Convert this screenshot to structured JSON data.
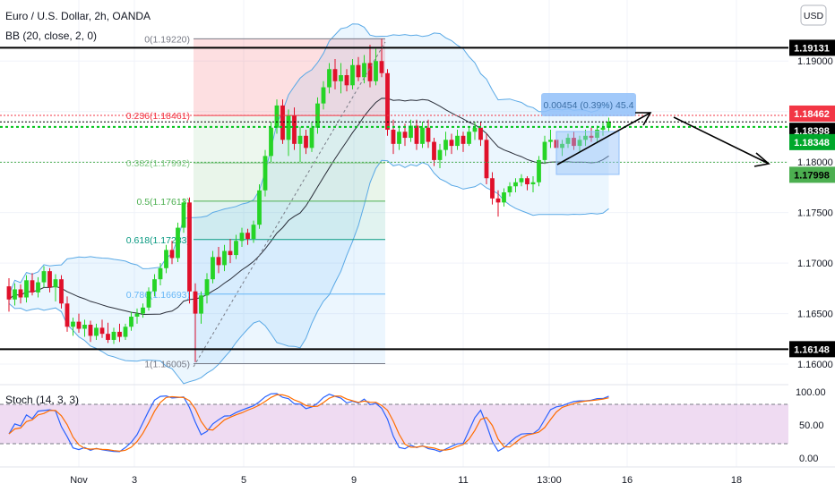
{
  "header": {
    "title": "Euro / U.S. Dollar, 2h, OANDA",
    "indicator": "BB (20, close, 2, 0)",
    "currency": "USD"
  },
  "stoch": {
    "label": "Stoch (14, 3, 3)",
    "ticks": [
      "100.00",
      "50.00",
      "0.00"
    ]
  },
  "x_axis": {
    "ticks": [
      "Nov",
      "3",
      "5",
      "9",
      "11",
      "13:00",
      "16",
      "18"
    ]
  },
  "price_axis": {
    "ticks": [
      "1.19000",
      "1.18500",
      "1.18000",
      "1.17500",
      "1.17000",
      "1.16500",
      "1.16000"
    ],
    "badges": [
      {
        "label": "1.19131",
        "color": "#000000",
        "text_color": "#ffffff"
      },
      {
        "label": "1.18462",
        "color": "#f23645",
        "text_color": "#ffffff"
      },
      {
        "label": "1.18398",
        "color": "#000000",
        "text_color": "#ffffff"
      },
      {
        "label": "1.18348",
        "color": "#00a82b",
        "text_color": "#ffffff"
      },
      {
        "label": "1.17998",
        "color": "#4caf50",
        "text_color": "#000000"
      },
      {
        "label": "1.16148",
        "color": "#000000",
        "text_color": "#ffffff"
      }
    ]
  },
  "fib_levels": [
    {
      "label": "0(1.19220)",
      "value": 1.1922,
      "color": "#787b86"
    },
    {
      "label": "0.236(1.18461)",
      "value": 1.18461,
      "color": "#f23645"
    },
    {
      "label": "0.382(1.17992)",
      "value": 1.17992,
      "color": "#81c784"
    },
    {
      "label": "0.5(1.17613)",
      "value": 1.17613,
      "color": "#4caf50"
    },
    {
      "label": "0.618(1.17233)",
      "value": 1.17233,
      "color": "#089981"
    },
    {
      "label": "0.786(1.16693)",
      "value": 1.16693,
      "color": "#64b5f6"
    },
    {
      "label": "1(1.16005)",
      "value": 1.16005,
      "color": "#787b86"
    }
  ],
  "measure": {
    "label": "0.00454 (0.39%) 45.4",
    "color": "#90bff9"
  },
  "colors": {
    "bull": "#26d426",
    "bear": "#e0102a",
    "band": "#5aa9e6",
    "basis": "#2a2e39"
  },
  "chart_data": {
    "type": "candlestick",
    "title": "Euro / U.S. Dollar, 2h, OANDA",
    "ylim": [
      1.1585,
      1.1948
    ],
    "horizontal_levels": [
      1.19131,
      1.16148,
      1.18462,
      1.18398,
      1.18348,
      1.17998
    ],
    "candles": [
      [
        1.1677,
        1.1685,
        1.1652,
        1.1664
      ],
      [
        1.1664,
        1.168,
        1.1658,
        1.1674
      ],
      [
        1.1674,
        1.1679,
        1.166,
        1.1666
      ],
      [
        1.1666,
        1.1688,
        1.1661,
        1.1683
      ],
      [
        1.1683,
        1.169,
        1.1668,
        1.1671
      ],
      [
        1.1671,
        1.1686,
        1.1666,
        1.1681
      ],
      [
        1.1681,
        1.1697,
        1.1676,
        1.1692
      ],
      [
        1.1692,
        1.1695,
        1.1671,
        1.1676
      ],
      [
        1.1676,
        1.1689,
        1.1662,
        1.1684
      ],
      [
        1.1684,
        1.1688,
        1.1655,
        1.166
      ],
      [
        1.166,
        1.1667,
        1.1632,
        1.1637
      ],
      [
        1.1637,
        1.1646,
        1.1628,
        1.1642
      ],
      [
        1.1642,
        1.165,
        1.1631,
        1.1635
      ],
      [
        1.1635,
        1.1644,
        1.1627,
        1.1639
      ],
      [
        1.1639,
        1.1643,
        1.1622,
        1.1628
      ],
      [
        1.1628,
        1.164,
        1.1624,
        1.1636
      ],
      [
        1.1636,
        1.1644,
        1.1626,
        1.163
      ],
      [
        1.163,
        1.1641,
        1.1621,
        1.1624
      ],
      [
        1.1624,
        1.1636,
        1.162,
        1.1632
      ],
      [
        1.1632,
        1.164,
        1.1622,
        1.1627
      ],
      [
        1.1627,
        1.164,
        1.1624,
        1.1637
      ],
      [
        1.1637,
        1.1652,
        1.1633,
        1.1647
      ],
      [
        1.1647,
        1.1655,
        1.164,
        1.165
      ],
      [
        1.165,
        1.166,
        1.1646,
        1.1656
      ],
      [
        1.1656,
        1.1676,
        1.1653,
        1.1672
      ],
      [
        1.1672,
        1.1689,
        1.1667,
        1.1684
      ],
      [
        1.1684,
        1.17,
        1.1678,
        1.1695
      ],
      [
        1.1695,
        1.1718,
        1.169,
        1.1713
      ],
      [
        1.1713,
        1.1722,
        1.1699,
        1.1705
      ],
      [
        1.1705,
        1.174,
        1.1701,
        1.1735
      ],
      [
        1.1735,
        1.1764,
        1.173,
        1.176
      ],
      [
        1.176,
        1.1765,
        1.166,
        1.1672
      ],
      [
        1.1672,
        1.168,
        1.1602,
        1.165
      ],
      [
        1.165,
        1.1672,
        1.164,
        1.1668
      ],
      [
        1.1668,
        1.169,
        1.166,
        1.1684
      ],
      [
        1.1684,
        1.1712,
        1.168,
        1.1706
      ],
      [
        1.1706,
        1.1716,
        1.169,
        1.1698
      ],
      [
        1.1698,
        1.1718,
        1.1692,
        1.1712
      ],
      [
        1.1712,
        1.1724,
        1.17,
        1.1708
      ],
      [
        1.1708,
        1.1728,
        1.1704,
        1.1722
      ],
      [
        1.1722,
        1.1735,
        1.1716,
        1.173
      ],
      [
        1.173,
        1.1734,
        1.1718,
        1.1724
      ],
      [
        1.1724,
        1.1742,
        1.172,
        1.1738
      ],
      [
        1.1738,
        1.1778,
        1.1734,
        1.1772
      ],
      [
        1.1772,
        1.1812,
        1.1766,
        1.1806
      ],
      [
        1.1806,
        1.184,
        1.18,
        1.1834
      ],
      [
        1.1834,
        1.1862,
        1.1828,
        1.1856
      ],
      [
        1.1856,
        1.1862,
        1.1818,
        1.1822
      ],
      [
        1.1822,
        1.1852,
        1.1806,
        1.1846
      ],
      [
        1.1846,
        1.1854,
        1.1812,
        1.1818
      ],
      [
        1.1818,
        1.1835,
        1.18,
        1.1826
      ],
      [
        1.1826,
        1.1832,
        1.1808,
        1.1814
      ],
      [
        1.1814,
        1.184,
        1.181,
        1.1834
      ],
      [
        1.1834,
        1.1864,
        1.1828,
        1.1858
      ],
      [
        1.1858,
        1.188,
        1.1852,
        1.1874
      ],
      [
        1.1874,
        1.1898,
        1.1868,
        1.1892
      ],
      [
        1.1892,
        1.1902,
        1.1872,
        1.188
      ],
      [
        1.188,
        1.1898,
        1.1868,
        1.1886
      ],
      [
        1.1886,
        1.1892,
        1.187,
        1.1876
      ],
      [
        1.1876,
        1.1902,
        1.1872,
        1.1896
      ],
      [
        1.1896,
        1.1904,
        1.188,
        1.1884
      ],
      [
        1.1884,
        1.1906,
        1.1878,
        1.1898
      ],
      [
        1.1898,
        1.1916,
        1.1874,
        1.188
      ],
      [
        1.188,
        1.1912,
        1.1876,
        1.19
      ],
      [
        1.19,
        1.1922,
        1.1884,
        1.1888
      ],
      [
        1.1888,
        1.1892,
        1.1826,
        1.1832
      ],
      [
        1.1832,
        1.1842,
        1.1808,
        1.1818
      ],
      [
        1.1818,
        1.1836,
        1.1812,
        1.183
      ],
      [
        1.183,
        1.1838,
        1.1816,
        1.1824
      ],
      [
        1.1824,
        1.1842,
        1.182,
        1.1836
      ],
      [
        1.1836,
        1.1842,
        1.1812,
        1.1818
      ],
      [
        1.1818,
        1.184,
        1.1814,
        1.1834
      ],
      [
        1.1834,
        1.1842,
        1.1814,
        1.182
      ],
      [
        1.182,
        1.1824,
        1.1796,
        1.1802
      ],
      [
        1.1802,
        1.1818,
        1.1794,
        1.1812
      ],
      [
        1.1812,
        1.183,
        1.1806,
        1.1822
      ],
      [
        1.1822,
        1.1828,
        1.1808,
        1.1816
      ],
      [
        1.1816,
        1.1832,
        1.1812,
        1.1826
      ],
      [
        1.1826,
        1.183,
        1.181,
        1.1818
      ],
      [
        1.1818,
        1.1834,
        1.1816,
        1.183
      ],
      [
        1.183,
        1.184,
        1.1822,
        1.1834
      ],
      [
        1.1834,
        1.184,
        1.1816,
        1.1822
      ],
      [
        1.1822,
        1.1828,
        1.1778,
        1.1784
      ],
      [
        1.1784,
        1.179,
        1.1758,
        1.1764
      ],
      [
        1.1764,
        1.1772,
        1.1746,
        1.176
      ],
      [
        1.176,
        1.1774,
        1.1756,
        1.177
      ],
      [
        1.177,
        1.178,
        1.1766,
        1.1776
      ],
      [
        1.1776,
        1.1784,
        1.177,
        1.178
      ],
      [
        1.178,
        1.1788,
        1.1776,
        1.1784
      ],
      [
        1.1784,
        1.1786,
        1.1772,
        1.1778
      ],
      [
        1.1778,
        1.1786,
        1.177,
        1.178
      ],
      [
        1.178,
        1.1806,
        1.1776,
        1.1802
      ],
      [
        1.1802,
        1.1826,
        1.1798,
        1.182
      ],
      [
        1.182,
        1.1832,
        1.1814,
        1.1822
      ],
      [
        1.1822,
        1.1826,
        1.1808,
        1.1814
      ],
      [
        1.1814,
        1.1822,
        1.1806,
        1.1818
      ],
      [
        1.1818,
        1.1828,
        1.1814,
        1.1824
      ],
      [
        1.1824,
        1.183,
        1.1812,
        1.1816
      ],
      [
        1.1816,
        1.1826,
        1.181,
        1.1822
      ],
      [
        1.1822,
        1.1832,
        1.1816,
        1.1826
      ],
      [
        1.1826,
        1.1834,
        1.182,
        1.1824
      ],
      [
        1.1824,
        1.1836,
        1.182,
        1.1832
      ],
      [
        1.1832,
        1.184,
        1.1826,
        1.1834
      ],
      [
        1.1834,
        1.1844,
        1.183,
        1.184
      ]
    ]
  }
}
